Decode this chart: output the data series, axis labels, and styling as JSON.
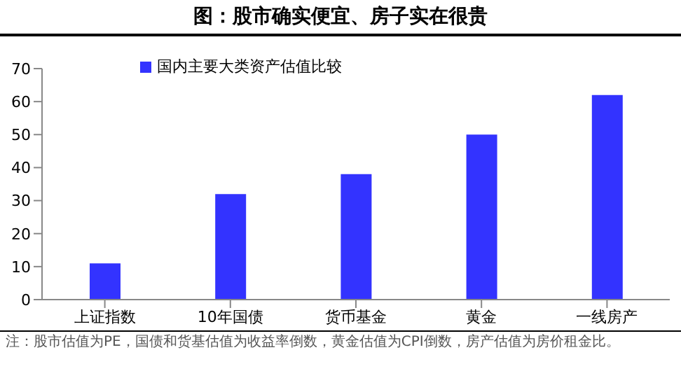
{
  "chart_data": {
    "type": "bar",
    "title": "图：股市确实便宜、房子实在很贵",
    "categories": [
      "上证指数",
      "10年国债",
      "货币基金",
      "黄金",
      "一线房产"
    ],
    "series": [
      {
        "name": "国内主要大类资产估值比较",
        "color": "#3333ff",
        "values": [
          11,
          32,
          38,
          50,
          62
        ]
      }
    ],
    "ylim": [
      0,
      70
    ],
    "yticks": [
      0,
      10,
      20,
      30,
      40,
      50,
      60,
      70
    ],
    "grid": false,
    "legend": "top left",
    "annotations": [
      "注：股市估值为PE，国债和货基估值为收益率倒数，黄金估值为CPI倒数，房产估值为房价租金比。"
    ]
  }
}
